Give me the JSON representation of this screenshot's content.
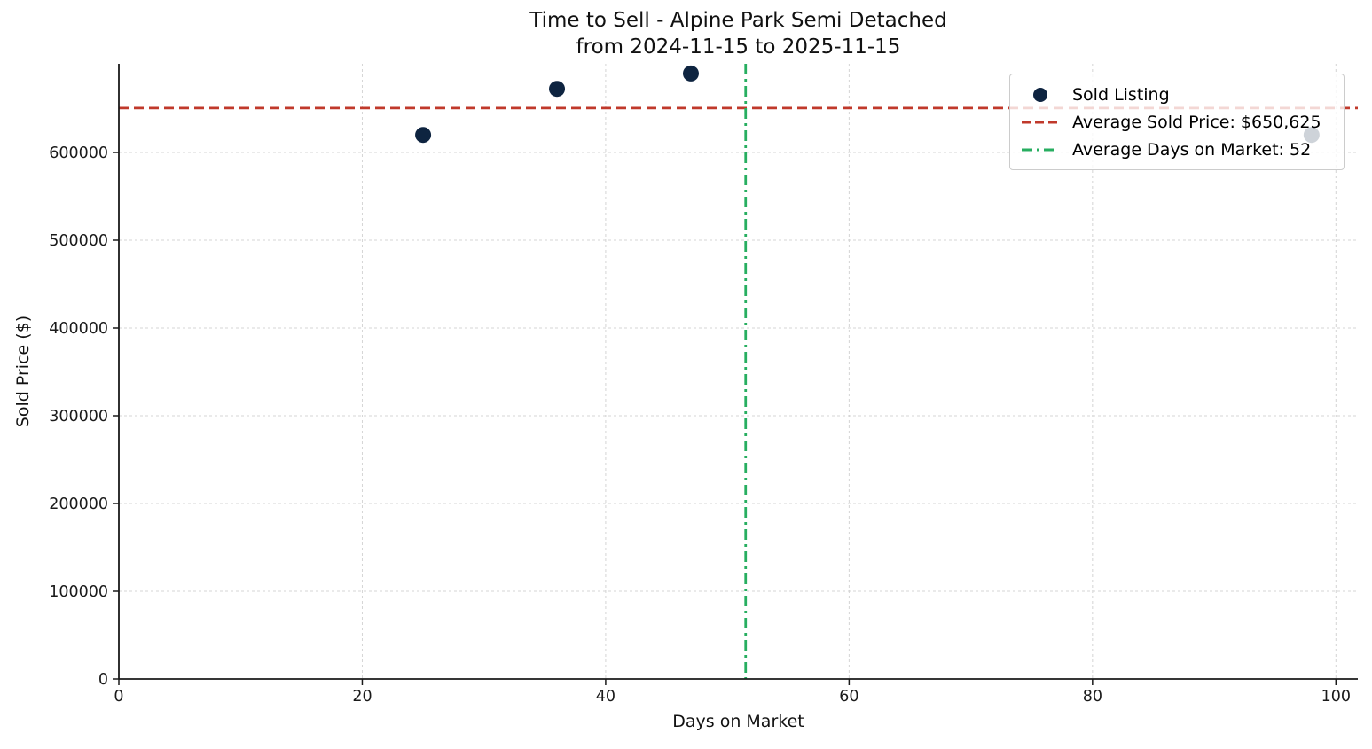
{
  "figure": {
    "title_line1": "Time to Sell - Alpine Park Semi Detached",
    "title_line2": "from 2024-11-15 to 2025-11-15",
    "x_axis_label": "Days on Market",
    "y_axis_label": "Sold Price ($)"
  },
  "legend": {
    "position": "upper right",
    "items": [
      {
        "label": "Sold Listing",
        "marker": "dot"
      },
      {
        "label": "Average Sold Price: $650,625",
        "marker": "dashed-line"
      },
      {
        "label": "Average Days on Market: 52",
        "marker": "dashdot-line"
      }
    ]
  },
  "chart_data": {
    "type": "scatter",
    "title": "Time to Sell - Alpine Park Semi Detached from 2024-11-15 to 2025-11-15",
    "xlabel": "Days on Market",
    "ylabel": "Sold Price ($)",
    "series": [
      {
        "name": "Sold Listing",
        "points": [
          [
            25,
            620000
          ],
          [
            36,
            672500
          ],
          [
            47,
            690000
          ],
          [
            98,
            620000
          ]
        ]
      }
    ],
    "average_sold_price": 650625,
    "average_days_on_market": 51.5,
    "average_days_on_market_displayed": 52,
    "x_ticks": [
      0,
      20,
      40,
      60,
      80,
      100
    ],
    "y_ticks": [
      0,
      100000,
      200000,
      300000,
      400000,
      500000,
      600000
    ],
    "xlim": [
      0,
      101.8
    ],
    "ylim": [
      0,
      701000
    ],
    "grid": true,
    "legend_position": "upper right",
    "colors": {
      "point": "#0e2440",
      "avg_price_line": "#c0392b",
      "avg_days_line": "#27ae60",
      "grid": "#d4d4d4",
      "spine": "#1a1a1a",
      "tick_text": "#1a1a1a",
      "legend_border": "#cccccc",
      "legend_bg": "rgba(255,255,255,0.8)"
    }
  }
}
